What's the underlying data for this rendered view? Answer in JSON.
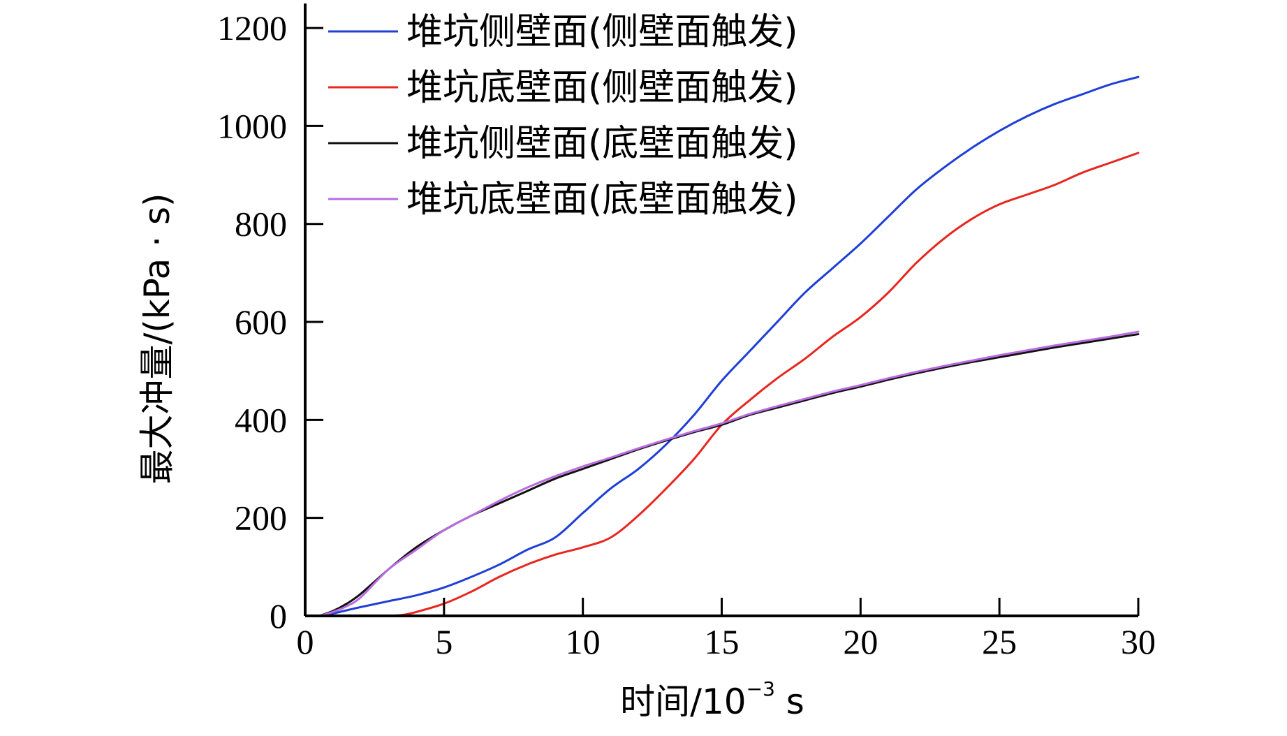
{
  "chart_data": {
    "type": "line",
    "title": "",
    "xlabel": "时间/10",
    "xlabel_sup": "−3",
    "xlabel_unit": " s",
    "ylabel": "最大冲量/(kPa · s)",
    "xlim": [
      0,
      30
    ],
    "ylim": [
      0,
      1250
    ],
    "xticks": [
      0,
      5,
      10,
      15,
      20,
      25,
      30
    ],
    "yticks": [
      0,
      200,
      400,
      600,
      800,
      1000,
      1200
    ],
    "xtick_labels": [
      "0",
      "5",
      "10",
      "15",
      "20",
      "25",
      "30"
    ],
    "ytick_labels": [
      "0",
      "200",
      "400",
      "600",
      "800",
      "1000",
      "1200"
    ],
    "grid": false,
    "legend_position": "top-left",
    "series": [
      {
        "name": "堆坑侧壁面(侧壁面触发)",
        "color": "#1f3fd6",
        "x": [
          0.5,
          1,
          2,
          3,
          4,
          5,
          6,
          7,
          8,
          9,
          10,
          11,
          12,
          13,
          14,
          15,
          16,
          17,
          18,
          19,
          20,
          21,
          22,
          23,
          24,
          25,
          26,
          27,
          28,
          29,
          30
        ],
        "y": [
          0,
          5,
          18,
          30,
          42,
          58,
          80,
          105,
          135,
          160,
          210,
          260,
          300,
          350,
          410,
          480,
          540,
          600,
          660,
          710,
          760,
          815,
          870,
          915,
          955,
          990,
          1020,
          1045,
          1065,
          1085,
          1100
        ]
      },
      {
        "name": "堆坑底壁面(侧壁面触发)",
        "color": "#e8261f",
        "x": [
          3,
          3.5,
          4,
          5,
          6,
          7,
          8,
          9,
          10,
          11,
          12,
          13,
          14,
          15,
          16,
          17,
          18,
          19,
          20,
          21,
          22,
          23,
          24,
          25,
          26,
          27,
          28,
          29,
          30
        ],
        "y": [
          0,
          2,
          8,
          25,
          50,
          80,
          105,
          125,
          140,
          160,
          205,
          260,
          320,
          390,
          440,
          485,
          525,
          570,
          610,
          660,
          720,
          770,
          810,
          840,
          860,
          880,
          905,
          925,
          945
        ]
      },
      {
        "name": "堆坑侧壁面(底壁面触发)",
        "color": "#111111",
        "x": [
          0.5,
          1,
          1.5,
          2,
          3,
          4,
          5,
          6,
          7,
          8,
          9,
          10,
          11,
          12,
          13,
          14,
          15,
          16,
          17,
          18,
          19,
          20,
          21,
          22,
          23,
          24,
          25,
          26,
          27,
          28,
          29,
          30
        ],
        "y": [
          0,
          10,
          25,
          45,
          95,
          140,
          175,
          205,
          230,
          255,
          280,
          300,
          320,
          340,
          358,
          375,
          390,
          410,
          425,
          440,
          455,
          468,
          482,
          495,
          507,
          518,
          528,
          538,
          548,
          557,
          566,
          575
        ]
      },
      {
        "name": "堆坑底壁面(底壁面触发)",
        "color": "#b86ce0",
        "x": [
          0.5,
          1,
          1.5,
          2,
          3,
          4,
          5,
          6,
          7,
          8,
          9,
          10,
          11,
          12,
          13,
          14,
          15,
          16,
          17,
          18,
          19,
          20,
          21,
          22,
          23,
          24,
          25,
          26,
          27,
          28,
          29,
          30
        ],
        "y": [
          0,
          8,
          20,
          38,
          95,
          135,
          175,
          205,
          235,
          262,
          285,
          305,
          323,
          342,
          360,
          377,
          393,
          412,
          428,
          443,
          458,
          471,
          485,
          498,
          510,
          521,
          532,
          542,
          552,
          561,
          570,
          580
        ]
      }
    ]
  }
}
